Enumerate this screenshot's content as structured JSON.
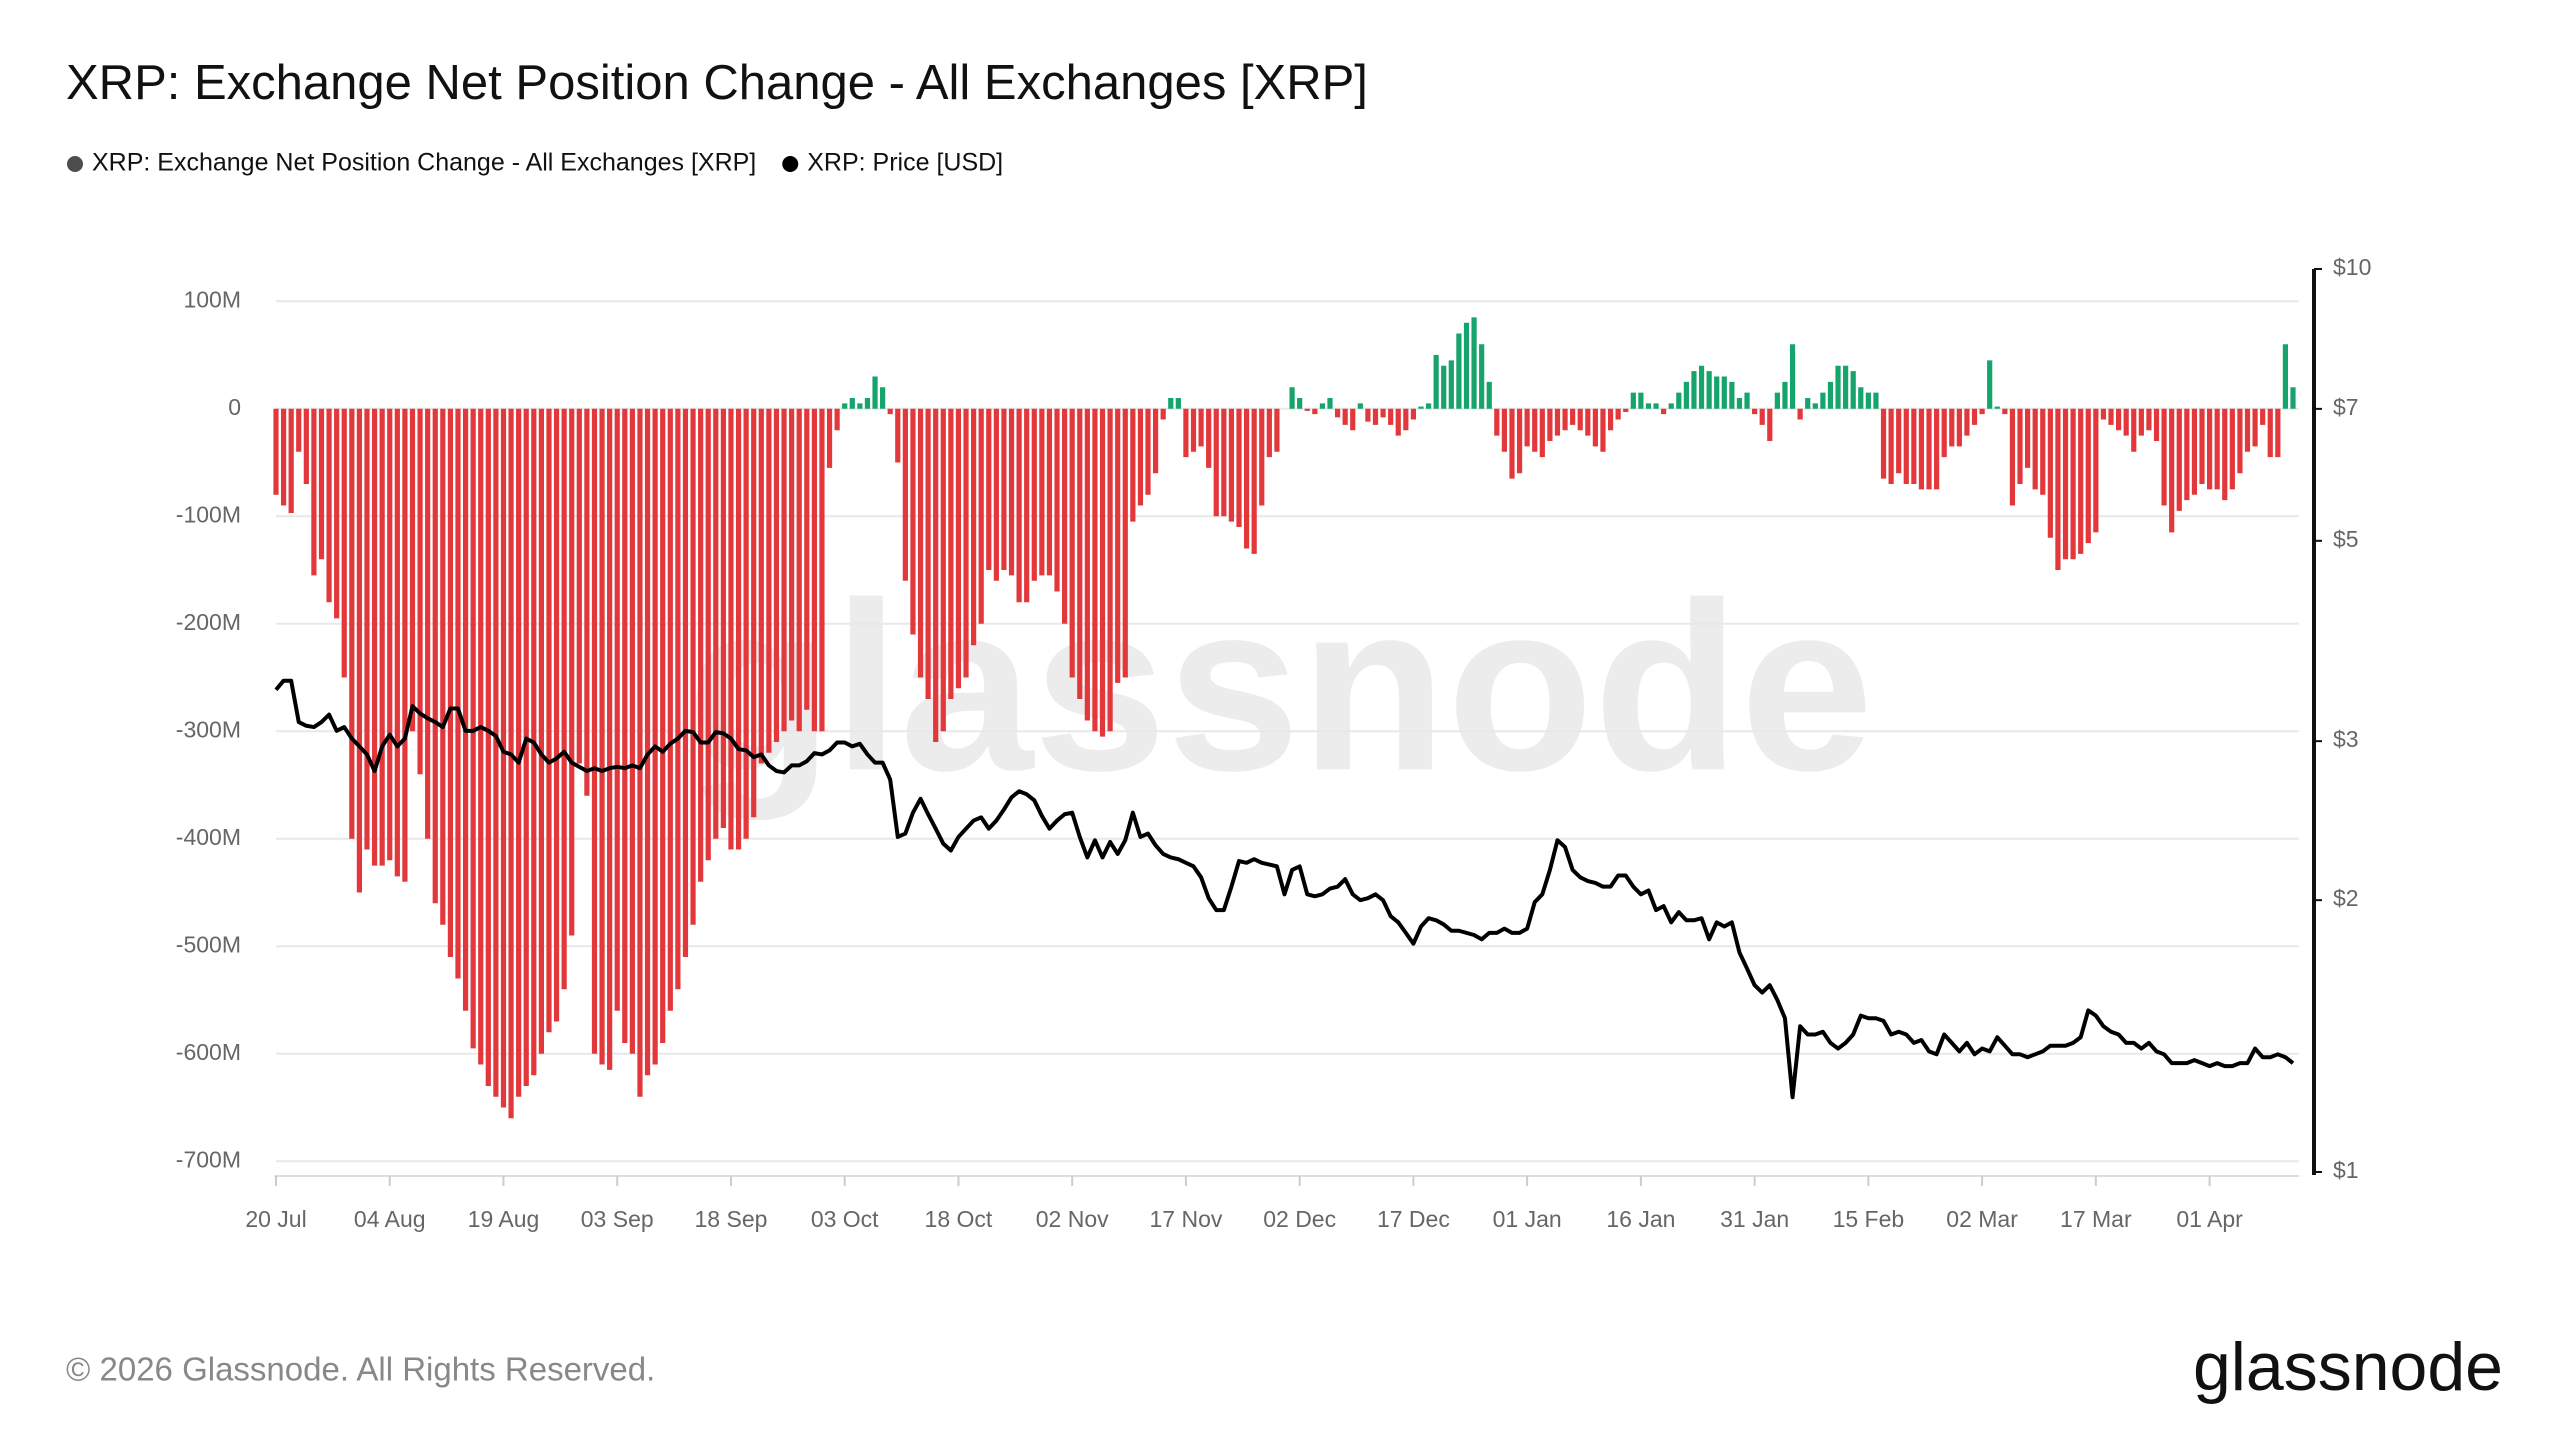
{
  "chart_data": {
    "type": "combo",
    "title": "XRP: Exchange Net Position Change - All Exchanges [XRP]",
    "legend": "top-left",
    "grid": true,
    "watermark": "glassnode",
    "footer": "© 2026 Glassnode. All Rights Reserved.",
    "logo": "glassnode",
    "categories": [
      "20 Jul",
      null,
      null,
      null,
      null,
      null,
      null,
      null,
      null,
      null,
      null,
      null,
      null,
      null,
      null,
      "04 Aug",
      null,
      null,
      null,
      null,
      null,
      null,
      null,
      null,
      null,
      null,
      null,
      null,
      null,
      null,
      "19 Aug",
      null,
      null,
      null,
      null,
      null,
      null,
      null,
      null,
      null,
      null,
      null,
      null,
      null,
      null,
      "03 Sep",
      null,
      null,
      null,
      null,
      null,
      null,
      null,
      null,
      null,
      null,
      null,
      null,
      null,
      null,
      "18 Sep",
      null,
      null,
      null,
      null,
      null,
      null,
      null,
      null,
      null,
      null,
      null,
      null,
      null,
      null,
      "03 Oct",
      null,
      null,
      null,
      null,
      null,
      null,
      null,
      null,
      null,
      null,
      null,
      null,
      null,
      null,
      "18 Oct",
      null,
      null,
      null,
      null,
      null,
      null,
      null,
      null,
      null,
      null,
      null,
      null,
      null,
      null,
      "02 Nov",
      null,
      null,
      null,
      null,
      null,
      null,
      null,
      null,
      null,
      null,
      null,
      null,
      null,
      null,
      "17 Nov",
      null,
      null,
      null,
      null,
      null,
      null,
      null,
      null,
      null,
      null,
      null,
      null,
      null,
      null,
      "02 Dec",
      null,
      null,
      null,
      null,
      null,
      null,
      null,
      null,
      null,
      null,
      null,
      null,
      null,
      null,
      "17 Dec",
      null,
      null,
      null,
      null,
      null,
      null,
      null,
      null,
      null,
      null,
      null,
      null,
      null,
      null,
      "01 Jan",
      null,
      null,
      null,
      null,
      null,
      null,
      null,
      null,
      null,
      null,
      null,
      null,
      null,
      null,
      "16 Jan",
      null,
      null,
      null,
      null,
      null,
      null,
      null,
      null,
      null,
      null,
      null,
      null,
      null,
      null,
      "31 Jan",
      null,
      null,
      null,
      null,
      null,
      null,
      null,
      null,
      null,
      null,
      null,
      null,
      null,
      null,
      "15 Feb",
      null,
      null,
      null,
      null,
      null,
      null,
      null,
      null,
      null,
      null,
      null,
      null,
      null,
      null,
      "02 Mar",
      null,
      null,
      null,
      null,
      null,
      null,
      null,
      null,
      null,
      null,
      null,
      null,
      null,
      null,
      "17 Mar",
      null,
      null,
      null,
      null,
      null,
      null,
      null,
      null,
      null,
      null,
      null,
      null,
      null,
      null,
      "01 Apr",
      null,
      null,
      null,
      null,
      null,
      null,
      null,
      null,
      null,
      null,
      null
    ],
    "ylim": [
      -710000000,
      130000000
    ],
    "yticks": [
      {
        "value": 100000000,
        "label": "100M"
      },
      0,
      {
        "value": -100000000,
        "label": "-100M"
      },
      {
        "value": -200000000,
        "label": "-200M"
      },
      {
        "value": -300000000,
        "label": "-300M"
      },
      {
        "value": -400000000,
        "label": "-400M"
      },
      {
        "value": -500000000,
        "label": "-500M"
      },
      {
        "value": -600000000,
        "label": "-600M"
      },
      {
        "value": -700000000,
        "label": "-700M"
      }
    ],
    "y2lim": [
      1,
      10
    ],
    "y2log": true,
    "y2ticks": [
      {
        "value": 1,
        "label": "$1"
      },
      {
        "value": 2,
        "label": "$2"
      },
      {
        "value": 3,
        "label": "$3"
      },
      {
        "value": 5,
        "label": "$5"
      },
      {
        "value": 7,
        "label": "$7"
      },
      {
        "value": 10,
        "label": "$10"
      }
    ],
    "series": [
      {
        "name": "XRP: Exchange Net Position Change - All Exchanges [XRP]",
        "type": "bar",
        "color": "#4d4d4d",
        "positive_color": "#16a36c",
        "negative_color": "#e2383c",
        "values": [
          -80000000,
          -90000000,
          -97000000,
          -40000000,
          -70000000,
          -155000000,
          -140000000,
          -180000000,
          -195000000,
          -250000000,
          -400000000,
          -450000000,
          -410000000,
          -425000000,
          -425000000,
          -420000000,
          -435000000,
          -440000000,
          -300000000,
          -340000000,
          -400000000,
          -460000000,
          -480000000,
          -510000000,
          -530000000,
          -560000000,
          -595000000,
          -610000000,
          -630000000,
          -640000000,
          -650000000,
          -660000000,
          -640000000,
          -630000000,
          -620000000,
          -600000000,
          -580000000,
          -570000000,
          -540000000,
          -490000000,
          -330000000,
          -360000000,
          -600000000,
          -610000000,
          -615000000,
          -560000000,
          -590000000,
          -600000000,
          -640000000,
          -620000000,
          -610000000,
          -590000000,
          -560000000,
          -540000000,
          -510000000,
          -480000000,
          -440000000,
          -420000000,
          -400000000,
          -390000000,
          -410000000,
          -410000000,
          -400000000,
          -380000000,
          -330000000,
          -320000000,
          -310000000,
          -300000000,
          -290000000,
          -300000000,
          -280000000,
          -300000000,
          -300000000,
          -55000000,
          -20000000,
          5000000,
          10000000,
          5000000,
          10000000,
          30000000,
          20000000,
          -5000000,
          -50000000,
          -160000000,
          -210000000,
          -250000000,
          -270000000,
          -310000000,
          -300000000,
          -270000000,
          -260000000,
          -250000000,
          -220000000,
          -200000000,
          -150000000,
          -160000000,
          -150000000,
          -155000000,
          -180000000,
          -180000000,
          -160000000,
          -155000000,
          -155000000,
          -170000000,
          -200000000,
          -250000000,
          -270000000,
          -290000000,
          -300000000,
          -305000000,
          -300000000,
          -255000000,
          -250000000,
          -105000000,
          -90000000,
          -80000000,
          -60000000,
          -10000000,
          10000000,
          10000000,
          -45000000,
          -40000000,
          -35000000,
          -55000000,
          -100000000,
          -100000000,
          -105000000,
          -110000000,
          -130000000,
          -135000000,
          -90000000,
          -45000000,
          -40000000,
          0,
          20000000,
          10000000,
          -2000000,
          -5000000,
          5000000,
          10000000,
          -8000000,
          -15000000,
          -20000000,
          5000000,
          -12000000,
          -15000000,
          -8000000,
          -15000000,
          -25000000,
          -20000000,
          -10000000,
          2000000,
          5000000,
          50000000,
          40000000,
          45000000,
          70000000,
          80000000,
          85000000,
          60000000,
          25000000,
          -25000000,
          -40000000,
          -65000000,
          -60000000,
          -35000000,
          -40000000,
          -45000000,
          -30000000,
          -25000000,
          -20000000,
          -15000000,
          -20000000,
          -25000000,
          -35000000,
          -40000000,
          -20000000,
          -10000000,
          -3000000,
          15000000,
          15000000,
          5000000,
          5000000,
          -5000000,
          5000000,
          15000000,
          25000000,
          35000000,
          40000000,
          35000000,
          30000000,
          30000000,
          25000000,
          10000000,
          15000000,
          -5000000,
          -15000000,
          -30000000,
          15000000,
          25000000,
          60000000,
          -10000000,
          10000000,
          5000000,
          15000000,
          25000000,
          40000000,
          40000000,
          35000000,
          20000000,
          15000000,
          15000000,
          -65000000,
          -70000000,
          -60000000,
          -70000000,
          -70000000,
          -75000000,
          -75000000,
          -75000000,
          -45000000,
          -35000000,
          -35000000,
          -25000000,
          -15000000,
          -5000000,
          45000000,
          2000000,
          -5000000,
          -90000000,
          -70000000,
          -55000000,
          -75000000,
          -80000000,
          -120000000,
          -150000000,
          -140000000,
          -140000000,
          -135000000,
          -125000000,
          -115000000,
          -10000000,
          -15000000,
          -20000000,
          -25000000,
          -40000000,
          -25000000,
          -20000000,
          -30000000,
          -90000000,
          -115000000,
          -95000000,
          -85000000,
          -80000000,
          -70000000,
          -75000000,
          -75000000,
          -85000000,
          -75000000,
          -60000000,
          -40000000,
          -35000000,
          -15000000,
          -45000000,
          -45000000,
          60000000,
          20000000
        ]
      },
      {
        "name": "XRP: Price [USD]",
        "type": "line",
        "axis": "y2",
        "color": "#000000",
        "values": [
          3.42,
          3.5,
          3.5,
          3.15,
          3.12,
          3.11,
          3.15,
          3.21,
          3.08,
          3.11,
          3.02,
          2.96,
          2.9,
          2.78,
          2.96,
          3.05,
          2.96,
          3.02,
          3.28,
          3.22,
          3.18,
          3.15,
          3.11,
          3.26,
          3.26,
          3.08,
          3.08,
          3.11,
          3.08,
          3.04,
          2.92,
          2.9,
          2.84,
          3.02,
          2.99,
          2.9,
          2.84,
          2.87,
          2.92,
          2.84,
          2.81,
          2.78,
          2.8,
          2.78,
          2.8,
          2.81,
          2.8,
          2.82,
          2.8,
          2.9,
          2.96,
          2.92,
          2.98,
          3.02,
          3.08,
          3.07,
          2.99,
          2.99,
          3.07,
          3.06,
          3.02,
          2.94,
          2.93,
          2.88,
          2.9,
          2.82,
          2.78,
          2.77,
          2.82,
          2.82,
          2.85,
          2.91,
          2.9,
          2.93,
          2.99,
          2.99,
          2.96,
          2.98,
          2.9,
          2.84,
          2.84,
          2.72,
          2.35,
          2.37,
          2.5,
          2.59,
          2.49,
          2.4,
          2.31,
          2.27,
          2.35,
          2.4,
          2.45,
          2.47,
          2.4,
          2.45,
          2.52,
          2.6,
          2.64,
          2.62,
          2.58,
          2.48,
          2.4,
          2.45,
          2.49,
          2.5,
          2.35,
          2.23,
          2.33,
          2.23,
          2.32,
          2.25,
          2.33,
          2.5,
          2.35,
          2.37,
          2.3,
          2.25,
          2.23,
          2.22,
          2.2,
          2.18,
          2.12,
          2.01,
          1.95,
          1.95,
          2.07,
          2.21,
          2.2,
          2.22,
          2.2,
          2.19,
          2.18,
          2.03,
          2.16,
          2.18,
          2.03,
          2.02,
          2.03,
          2.06,
          2.07,
          2.11,
          2.03,
          2.0,
          2.01,
          2.03,
          2.0,
          1.92,
          1.89,
          1.84,
          1.79,
          1.87,
          1.91,
          1.9,
          1.88,
          1.85,
          1.85,
          1.84,
          1.83,
          1.81,
          1.84,
          1.84,
          1.86,
          1.84,
          1.84,
          1.86,
          1.99,
          2.03,
          2.16,
          2.33,
          2.29,
          2.16,
          2.12,
          2.1,
          2.09,
          2.07,
          2.07,
          2.13,
          2.13,
          2.07,
          2.03,
          2.05,
          1.95,
          1.97,
          1.89,
          1.94,
          1.9,
          1.9,
          1.91,
          1.81,
          1.89,
          1.87,
          1.89,
          1.75,
          1.68,
          1.61,
          1.58,
          1.61,
          1.55,
          1.48,
          1.21,
          1.45,
          1.42,
          1.42,
          1.43,
          1.39,
          1.37,
          1.39,
          1.42,
          1.49,
          1.48,
          1.48,
          1.47,
          1.42,
          1.43,
          1.42,
          1.39,
          1.4,
          1.36,
          1.35,
          1.42,
          1.39,
          1.36,
          1.39,
          1.35,
          1.37,
          1.36,
          1.41,
          1.38,
          1.35,
          1.35,
          1.34,
          1.35,
          1.36,
          1.38,
          1.38,
          1.38,
          1.39,
          1.41,
          1.51,
          1.49,
          1.45,
          1.43,
          1.42,
          1.39,
          1.39,
          1.37,
          1.39,
          1.36,
          1.35,
          1.32,
          1.32,
          1.32,
          1.33,
          1.32,
          1.31,
          1.32,
          1.31,
          1.31,
          1.32,
          1.32,
          1.37,
          1.34,
          1.34,
          1.35,
          1.34,
          1.32
        ]
      }
    ]
  }
}
